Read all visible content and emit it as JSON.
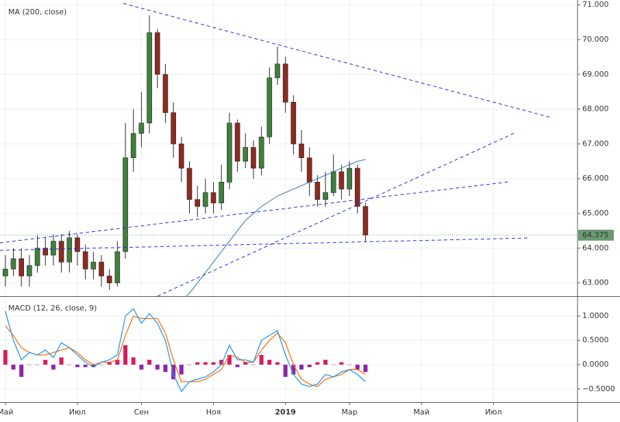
{
  "chart_data": {
    "type": "candlestick",
    "categories": [
      "Май",
      null,
      null,
      null,
      null,
      null,
      null,
      null,
      null,
      "Июл",
      null,
      null,
      null,
      null,
      null,
      null,
      null,
      "Сен",
      null,
      null,
      null,
      null,
      null,
      null,
      null,
      null,
      "Ноя",
      null,
      null,
      null,
      null,
      null,
      null,
      null,
      null,
      "2019",
      null,
      null,
      null,
      null,
      null,
      null,
      null,
      "Мар",
      null,
      null,
      null,
      null,
      null,
      null,
      null,
      null,
      "Май",
      null,
      null,
      null,
      null,
      null,
      null,
      null,
      null,
      "Июл",
      null,
      null,
      null,
      null,
      null,
      null,
      null,
      null,
      null,
      null
    ],
    "open": [
      63.2,
      63.4,
      63.7,
      63.2,
      63.5,
      64.0,
      63.8,
      64.2,
      63.6,
      64.3,
      63.9,
      63.4,
      63.6,
      63.2,
      63.0,
      63.9,
      66.6,
      67.3,
      67.6,
      70.2,
      69.0,
      67.9,
      67.0,
      66.3,
      65.4,
      65.2,
      65.6,
      65.3,
      65.9,
      67.6,
      66.5,
      66.9,
      66.3,
      67.2,
      68.9,
      69.3,
      68.2,
      67.0,
      66.6,
      65.9,
      65.4,
      65.6,
      66.2,
      65.7,
      66.3,
      65.2,
      null,
      null,
      null,
      null,
      null,
      null,
      null,
      null,
      null,
      null,
      null,
      null,
      null,
      null,
      null,
      null,
      null,
      null,
      null,
      null,
      null,
      null,
      null,
      null,
      null,
      null
    ],
    "high": [
      63.8,
      64.0,
      64.0,
      63.8,
      64.4,
      64.3,
      64.4,
      64.4,
      64.5,
      64.4,
      64.1,
      63.9,
      63.8,
      63.4,
      64.2,
      67.6,
      68.0,
      68.5,
      70.7,
      70.3,
      69.3,
      68.2,
      67.2,
      66.5,
      65.8,
      66.0,
      65.9,
      66.4,
      67.9,
      67.7,
      67.3,
      67.1,
      67.5,
      69.2,
      69.8,
      69.5,
      68.4,
      67.4,
      66.9,
      66.1,
      66.2,
      66.7,
      66.4,
      66.5,
      66.4,
      65.3,
      null,
      null,
      null,
      null,
      null,
      null,
      null,
      null,
      null,
      null,
      null,
      null,
      null,
      null,
      null,
      null,
      null,
      null,
      null,
      null,
      null,
      null,
      null,
      null,
      null,
      null
    ],
    "low": [
      62.9,
      63.2,
      62.9,
      62.9,
      63.3,
      63.5,
      63.5,
      63.3,
      63.3,
      63.5,
      63.1,
      63.1,
      62.9,
      62.8,
      62.9,
      63.7,
      66.2,
      66.9,
      67.3,
      68.6,
      67.6,
      66.6,
      65.9,
      65.0,
      64.9,
      65.0,
      65.0,
      65.1,
      65.7,
      66.2,
      66.3,
      66.0,
      66.1,
      67.0,
      68.7,
      67.9,
      66.7,
      66.2,
      65.5,
      65.2,
      65.2,
      65.5,
      65.4,
      65.5,
      65.0,
      64.2,
      null,
      null,
      null,
      null,
      null,
      null,
      null,
      null,
      null,
      null,
      null,
      null,
      null,
      null,
      null,
      null,
      null,
      null,
      null,
      null,
      null,
      null,
      null,
      null,
      null,
      null
    ],
    "close": [
      63.4,
      63.7,
      63.2,
      63.5,
      64.0,
      63.8,
      64.2,
      63.6,
      64.3,
      63.9,
      63.4,
      63.6,
      63.2,
      63.0,
      63.9,
      66.6,
      67.3,
      67.6,
      70.2,
      69.0,
      67.9,
      67.0,
      66.3,
      65.4,
      65.2,
      65.6,
      65.3,
      65.9,
      67.6,
      66.5,
      66.9,
      66.3,
      67.2,
      68.9,
      69.3,
      68.2,
      67.0,
      66.6,
      65.9,
      65.4,
      65.6,
      66.2,
      65.7,
      66.3,
      65.2,
      64.375,
      null,
      null,
      null,
      null,
      null,
      null,
      null,
      null,
      null,
      null,
      null,
      null,
      null,
      null,
      null,
      null,
      null,
      null,
      null,
      null,
      null,
      null,
      null,
      null,
      null,
      null
    ],
    "up_color": "#3f7f3f",
    "down_color": "#8e2a22",
    "last_color": "#6a9a72",
    "series": [
      {
        "name": "MA (200, close)",
        "color": "#2f6fa8",
        "values": [
          null,
          null,
          null,
          null,
          null,
          null,
          null,
          null,
          null,
          null,
          null,
          null,
          null,
          null,
          null,
          null,
          null,
          null,
          null,
          null,
          null,
          62.3,
          62.5,
          62.7,
          63.0,
          63.3,
          63.6,
          63.9,
          64.2,
          64.5,
          64.8,
          65.0,
          65.2,
          65.35,
          65.5,
          65.6,
          65.7,
          65.8,
          65.9,
          66.0,
          66.1,
          66.2,
          66.3,
          66.4,
          66.5,
          66.55,
          null,
          null,
          null,
          null,
          null,
          null,
          null,
          null,
          null,
          null,
          null,
          null,
          null,
          null,
          null,
          null,
          null,
          null,
          null,
          null,
          null,
          null,
          null,
          null,
          null,
          null
        ]
      }
    ],
    "ylim": [
      62.62,
      71.14
    ],
    "yticks": [
      {
        "value": 63,
        "label": "63.000"
      },
      {
        "value": 64,
        "label": "64.000"
      },
      {
        "value": 65,
        "label": "65.000"
      },
      {
        "value": 66,
        "label": "66.000"
      },
      {
        "value": 67,
        "label": "67.000"
      },
      {
        "value": 68,
        "label": "68.000"
      },
      {
        "value": 69,
        "label": "69.000"
      },
      {
        "value": 70,
        "label": "70.000"
      },
      {
        "value": 71,
        "label": "71.000"
      }
    ],
    "grid": true,
    "macd": {
      "title": "MACD (12, 26, close, 9)",
      "ylim": [
        -0.77,
        1.38
      ],
      "yticks": [
        {
          "value": -0.5,
          "label": "−0.5000"
        },
        {
          "value": 0,
          "label": "0.0000"
        },
        {
          "value": 0.5,
          "label": "0.5000"
        },
        {
          "value": 1,
          "label": "1.0000"
        }
      ],
      "line": {
        "color": "#2196f3",
        "values": [
          1.1,
          0.5,
          0.1,
          0.25,
          0.2,
          0.3,
          0.15,
          0.45,
          0.35,
          0.2,
          0.05,
          -0.05,
          0.05,
          0.1,
          0.2,
          1.0,
          1.15,
          0.85,
          1.05,
          0.85,
          0.5,
          -0.2,
          -0.55,
          -0.35,
          -0.3,
          -0.25,
          -0.15,
          0.0,
          0.4,
          0.1,
          0.1,
          0.05,
          0.5,
          0.6,
          0.7,
          0.2,
          -0.2,
          -0.4,
          -0.45,
          -0.4,
          -0.2,
          -0.25,
          -0.15,
          -0.1,
          -0.2,
          -0.35,
          null,
          null,
          null,
          null,
          null,
          null,
          null,
          null,
          null,
          null,
          null,
          null,
          null,
          null,
          null,
          null,
          null,
          null,
          null,
          null,
          null,
          null,
          null,
          null,
          null,
          null
        ]
      },
      "signal": {
        "color": "#ff6d00",
        "values": [
          0.8,
          0.6,
          0.35,
          0.25,
          0.2,
          0.2,
          0.25,
          0.3,
          0.35,
          0.25,
          0.1,
          0.0,
          0.05,
          0.05,
          0.1,
          0.6,
          1.0,
          0.95,
          0.95,
          0.95,
          0.65,
          0.1,
          -0.35,
          -0.35,
          -0.35,
          -0.3,
          -0.2,
          -0.1,
          0.2,
          0.15,
          0.05,
          0.05,
          0.3,
          0.5,
          0.65,
          0.45,
          0.0,
          -0.3,
          -0.4,
          -0.45,
          -0.3,
          -0.25,
          -0.2,
          -0.1,
          -0.1,
          -0.2,
          null,
          null,
          null,
          null,
          null,
          null,
          null,
          null,
          null,
          null,
          null,
          null,
          null,
          null,
          null,
          null,
          null,
          null,
          null,
          null,
          null,
          null,
          null,
          null,
          null,
          null
        ]
      },
      "histogram": {
        "up_color": "#d81b60",
        "down_color": "#8e24aa",
        "values": [
          0.3,
          -0.1,
          -0.25,
          0,
          0,
          0.1,
          -0.1,
          0.15,
          0,
          -0.05,
          -0.05,
          -0.05,
          0,
          0.05,
          0.1,
          0.4,
          0.15,
          -0.1,
          0.1,
          -0.1,
          -0.15,
          -0.3,
          -0.2,
          0,
          0.05,
          0.05,
          0.05,
          0.1,
          0.2,
          -0.05,
          0.05,
          0,
          0.2,
          0.1,
          0.05,
          -0.25,
          -0.2,
          -0.1,
          -0.05,
          0.05,
          0.1,
          0,
          0.05,
          0,
          -0.1,
          -0.15,
          null,
          null,
          null,
          null,
          null,
          null,
          null,
          null,
          null,
          null,
          null,
          null,
          null,
          null,
          null,
          null,
          null,
          null,
          null,
          null,
          null,
          null,
          null,
          null,
          null,
          null
        ]
      }
    }
  }
}
